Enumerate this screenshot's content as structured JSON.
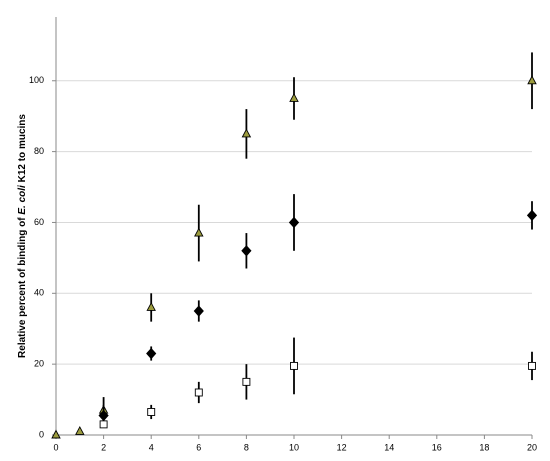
{
  "chart_data": {
    "type": "scatter",
    "ylabel": [
      "Relative percent of binding of ",
      "E. coli",
      " K12 to mucins"
    ],
    "xlim": [
      0,
      20
    ],
    "xticks": [
      0,
      2,
      4,
      6,
      8,
      10,
      12,
      14,
      16,
      18,
      20
    ],
    "ylim": [
      0,
      118
    ],
    "yticks": [
      0,
      20,
      40,
      60,
      80,
      100
    ],
    "grid": true,
    "series": [
      {
        "marker": "triangle",
        "color": "#9c9c3e",
        "x": [
          0,
          1,
          2,
          4,
          6,
          8,
          10,
          20
        ],
        "values": [
          0,
          1,
          7,
          36,
          57,
          85,
          95,
          100
        ],
        "errors": [
          0,
          0,
          3.7,
          4,
          8,
          7,
          6,
          8
        ]
      },
      {
        "marker": "diamond",
        "color": "#000000",
        "x": [
          2,
          4,
          6,
          8,
          10,
          20
        ],
        "values": [
          5.5,
          23,
          35,
          52,
          60,
          62
        ],
        "errors": [
          3,
          2,
          3,
          5,
          8,
          4
        ]
      },
      {
        "marker": "square",
        "color": "#ffffff",
        "x": [
          2,
          4,
          6,
          8,
          10,
          20
        ],
        "values": [
          3,
          6.5,
          12,
          15,
          19.5,
          19.5
        ],
        "errors": [
          1,
          2,
          3,
          5,
          8,
          4
        ]
      }
    ]
  }
}
